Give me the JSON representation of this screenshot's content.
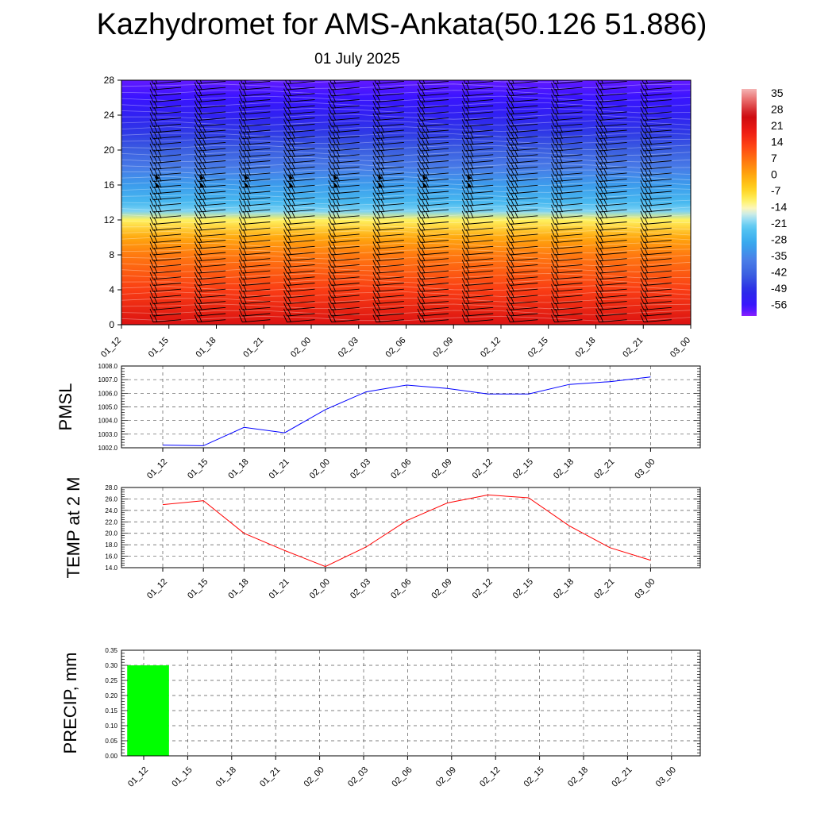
{
  "title": "Kazhydromet for AMS-Ankata(50.126 51.886)",
  "subtitle": "01 July 2025",
  "time_labels": [
    "01_12",
    "01_15",
    "01_18",
    "01_21",
    "02_00",
    "02_03",
    "02_06",
    "02_09",
    "02_12",
    "02_15",
    "02_18",
    "02_21",
    "03_00"
  ],
  "chart_data": [
    {
      "type": "heatmap",
      "title": "",
      "x": [
        "01_12",
        "01_15",
        "01_18",
        "01_21",
        "02_00",
        "02_03",
        "02_06",
        "02_09",
        "02_12",
        "02_15",
        "02_18",
        "02_21",
        "03_00"
      ],
      "yticks": [
        0,
        4,
        8,
        12,
        16,
        20,
        24,
        28
      ],
      "ylim": [
        0,
        28
      ],
      "colorbar_labels": [
        "35",
        "28",
        "21",
        "14",
        "7",
        "0",
        "-7",
        "-14",
        "-21",
        "-28",
        "-35",
        "-42",
        "-49",
        "-56"
      ],
      "colorbar_range": [
        -60,
        40
      ],
      "temperature_profile": [
        {
          "level": 0,
          "value": 25
        },
        {
          "level": 4,
          "value": 16
        },
        {
          "level": 8,
          "value": 8
        },
        {
          "level": 10,
          "value": 2
        },
        {
          "level": 12,
          "value": -9
        },
        {
          "level": 13,
          "value": -19
        },
        {
          "level": 14,
          "value": -24
        },
        {
          "level": 16,
          "value": -30
        },
        {
          "level": 18,
          "value": -36
        },
        {
          "level": 20,
          "value": -42
        },
        {
          "level": 22,
          "value": -47
        },
        {
          "level": 24,
          "value": -52
        },
        {
          "level": 26,
          "value": -56
        },
        {
          "level": 28,
          "value": -58
        }
      ],
      "wind_barbs": "present",
      "grid": false
    },
    {
      "type": "line",
      "ylabel": "PMSL",
      "categories": [
        "01_12",
        "01_15",
        "01_18",
        "01_21",
        "02_00",
        "02_03",
        "02_06",
        "02_09",
        "02_12",
        "02_15",
        "02_18",
        "02_21",
        "03_00"
      ],
      "values": [
        1002.2,
        1002.15,
        1003.5,
        1003.1,
        1004.8,
        1006.1,
        1006.6,
        1006.35,
        1005.95,
        1005.95,
        1006.65,
        1006.85,
        1007.2
      ],
      "ylim": [
        1002.0,
        1008.0
      ],
      "yticks": [
        "1002.0",
        "1003.0",
        "1004.0",
        "1005.0",
        "1006.0",
        "1007.0",
        "1008.0"
      ],
      "line_color": "#0000ff",
      "grid": true
    },
    {
      "type": "line",
      "ylabel": "TEMP at 2 M",
      "categories": [
        "01_12",
        "01_15",
        "01_18",
        "01_21",
        "02_00",
        "02_03",
        "02_06",
        "02_09",
        "02_12",
        "02_15",
        "02_18",
        "02_21",
        "03_00"
      ],
      "values": [
        25.0,
        25.7,
        20.0,
        17.0,
        14.2,
        17.6,
        22.2,
        25.3,
        26.7,
        26.2,
        21.3,
        17.5,
        15.3
      ],
      "ylim": [
        14.0,
        28.0
      ],
      "yticks": [
        "14.0",
        "16.0",
        "18.0",
        "20.0",
        "22.0",
        "24.0",
        "26.0",
        "28.0"
      ],
      "line_color": "#ff0000",
      "grid": true
    },
    {
      "type": "bar",
      "ylabel": "PRECIP, mm",
      "categories": [
        "01_12",
        "01_15",
        "01_18",
        "01_21",
        "02_00",
        "02_03",
        "02_06",
        "02_09",
        "02_12",
        "02_15",
        "02_18",
        "02_21",
        "03_00"
      ],
      "values": [
        0.3,
        0,
        0,
        0,
        0,
        0,
        0,
        0,
        0,
        0,
        0,
        0,
        0
      ],
      "ylim": [
        0.0,
        0.35
      ],
      "yticks": [
        "0.00",
        "0.05",
        "0.10",
        "0.15",
        "0.20",
        "0.25",
        "0.30",
        "0.35"
      ],
      "bar_color": "#00ff00",
      "grid": true
    }
  ]
}
